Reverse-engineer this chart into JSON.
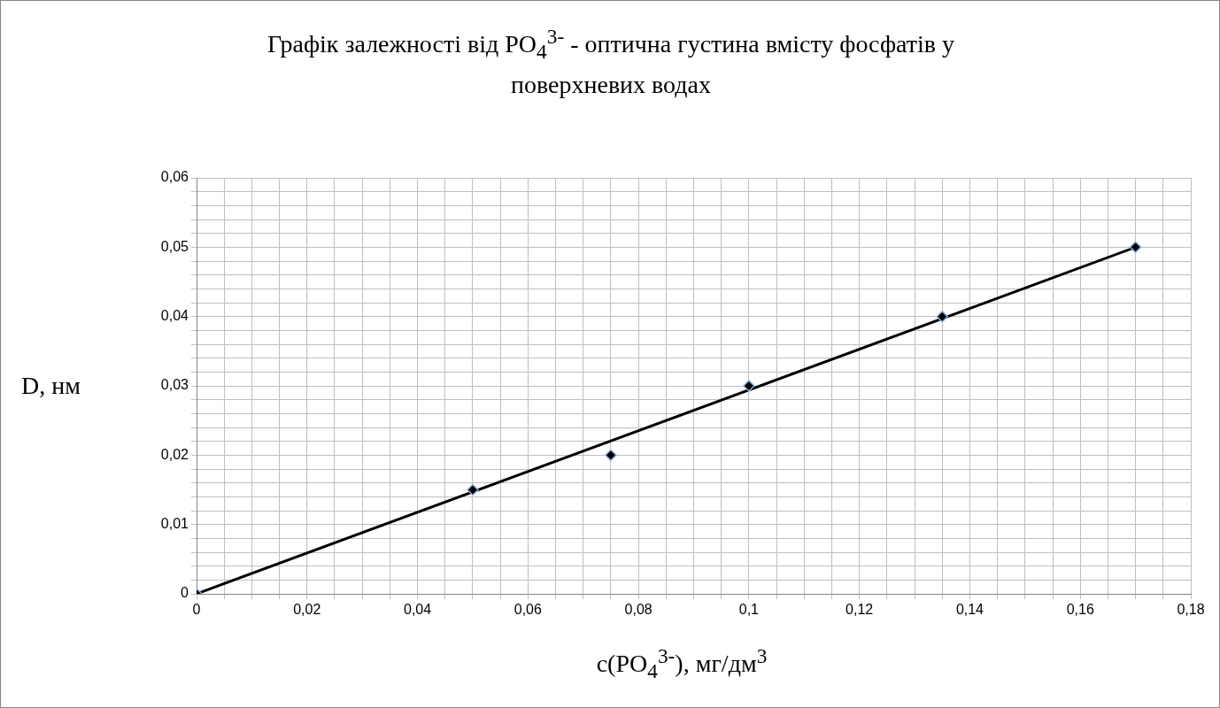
{
  "chart_data": {
    "type": "scatter",
    "title": "Графік залежності від PO$_{4}$$^{3-}$ - оптична густина вмісту фосфатів у поверхневих водах",
    "xlabel": "c(PO$_{4}$$^{3-}$), мг/дм$^{3}$",
    "ylabel": "D, нм",
    "series": [
      {
        "color": "#000000",
        "marker": "diamond",
        "x": [
          0,
          0.05,
          0.075,
          0.1,
          0.135,
          0.17
        ],
        "values": [
          0,
          0.015,
          0.02,
          0.03,
          0.04,
          0.05
        ]
      },
      {
        "type": "line",
        "color": "#000000",
        "marker": "none",
        "x": [
          0,
          0.17
        ],
        "values": [
          0,
          0.05
        ]
      }
    ],
    "xlim": [
      0,
      0.18
    ],
    "ylim": [
      0,
      0.06
    ],
    "xticks": [
      0,
      {
        "value": 0.005,
        "label": null
      },
      {
        "value": 0.01,
        "label": null
      },
      {
        "value": 0.015,
        "label": null
      },
      {
        "value": 0.02,
        "label": "0,02"
      },
      {
        "value": 0.025,
        "label": null
      },
      {
        "value": 0.03,
        "label": null
      },
      {
        "value": 0.035,
        "label": null
      },
      {
        "value": 0.04,
        "label": "0,04"
      },
      {
        "value": 0.045,
        "label": null
      },
      {
        "value": 0.05,
        "label": null
      },
      {
        "value": 0.055,
        "label": null
      },
      {
        "value": 0.06,
        "label": "0,06"
      },
      {
        "value": 0.065,
        "label": null
      },
      {
        "value": 0.07,
        "label": null
      },
      {
        "value": 0.075,
        "label": null
      },
      {
        "value": 0.08,
        "label": "0,08"
      },
      {
        "value": 0.085,
        "label": null
      },
      {
        "value": 0.09,
        "label": null
      },
      {
        "value": 0.095,
        "label": null
      },
      {
        "value": 0.1,
        "label": "0,1"
      },
      {
        "value": 0.105,
        "label": null
      },
      {
        "value": 0.11,
        "label": null
      },
      {
        "value": 0.115,
        "label": null
      },
      {
        "value": 0.12,
        "label": "0,12"
      },
      {
        "value": 0.125,
        "label": null
      },
      {
        "value": 0.13,
        "label": null
      },
      {
        "value": 0.135,
        "label": null
      },
      {
        "value": 0.14,
        "label": "0,14"
      },
      {
        "value": 0.145,
        "label": null
      },
      {
        "value": 0.15,
        "label": null
      },
      {
        "value": 0.155,
        "label": null
      },
      {
        "value": 0.16,
        "label": "0,16"
      },
      {
        "value": 0.165,
        "label": null
      },
      {
        "value": 0.17,
        "label": null
      },
      {
        "value": 0.175,
        "label": null
      },
      {
        "value": 0.18,
        "label": "0,18"
      }
    ],
    "yticks": [
      0,
      {
        "value": 0.002,
        "label": null
      },
      {
        "value": 0.004,
        "label": null
      },
      {
        "value": 0.006,
        "label": null
      },
      {
        "value": 0.008,
        "label": null
      },
      {
        "value": 0.01,
        "label": "0,01"
      },
      {
        "value": 0.012,
        "label": null
      },
      {
        "value": 0.014,
        "label": null
      },
      {
        "value": 0.016,
        "label": null
      },
      {
        "value": 0.018,
        "label": null
      },
      {
        "value": 0.02,
        "label": "0,02"
      },
      {
        "value": 0.022,
        "label": null
      },
      {
        "value": 0.024,
        "label": null
      },
      {
        "value": 0.026,
        "label": null
      },
      {
        "value": 0.028,
        "label": null
      },
      {
        "value": 0.03,
        "label": "0,03"
      },
      {
        "value": 0.032,
        "label": null
      },
      {
        "value": 0.034,
        "label": null
      },
      {
        "value": 0.036,
        "label": null
      },
      {
        "value": 0.038,
        "label": null
      },
      {
        "value": 0.04,
        "label": "0,04"
      },
      {
        "value": 0.042,
        "label": null
      },
      {
        "value": 0.044,
        "label": null
      },
      {
        "value": 0.046,
        "label": null
      },
      {
        "value": 0.048,
        "label": null
      },
      {
        "value": 0.05,
        "label": "0,05"
      },
      {
        "value": 0.052,
        "label": null
      },
      {
        "value": 0.054,
        "label": null
      },
      {
        "value": 0.056,
        "label": null
      },
      {
        "value": 0.058,
        "label": null
      },
      {
        "value": 0.06,
        "label": "0,06"
      }
    ],
    "grid": true,
    "legend": false
  }
}
